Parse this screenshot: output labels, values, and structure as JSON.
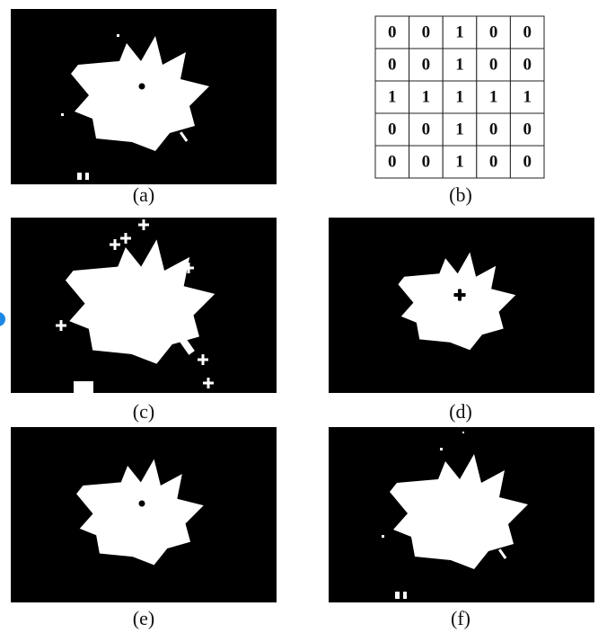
{
  "panels": [
    {
      "label": "(a)"
    },
    {
      "label": "(b)"
    },
    {
      "label": "(c)"
    },
    {
      "label": "(d)"
    },
    {
      "label": "(e)"
    },
    {
      "label": "(f)"
    }
  ],
  "matrix": [
    [
      0,
      0,
      1,
      0,
      0
    ],
    [
      0,
      0,
      1,
      0,
      0
    ],
    [
      1,
      1,
      1,
      1,
      1
    ],
    [
      0,
      0,
      1,
      0,
      0
    ],
    [
      0,
      0,
      1,
      0,
      0
    ]
  ]
}
